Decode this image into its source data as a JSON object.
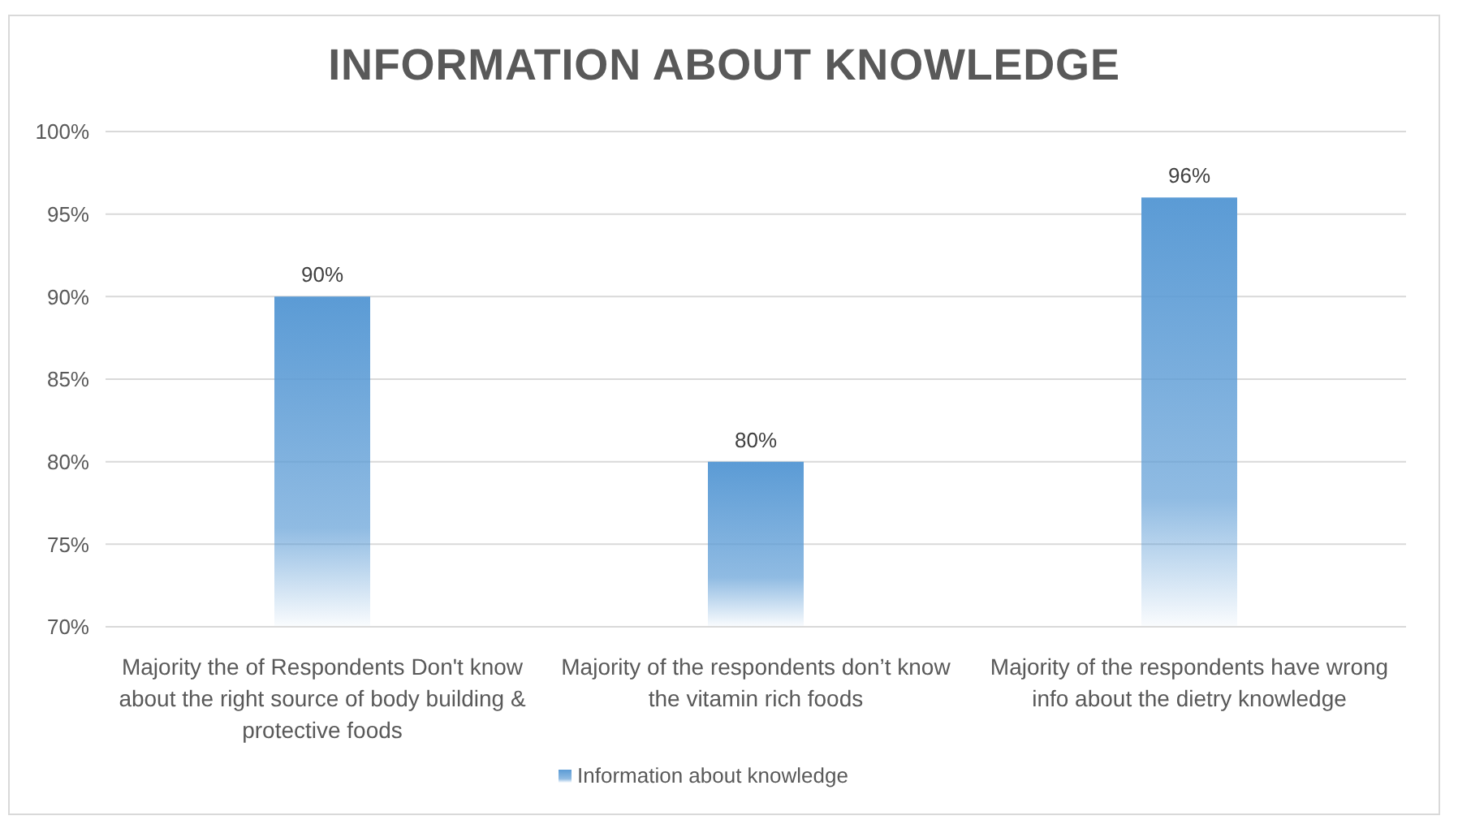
{
  "chart_data": {
    "type": "bar",
    "title": "INFORMATION ABOUT KNOWLEDGE",
    "categories": [
      "Majority the of Respondents Don't know about the right source of body building & protective foods",
      "Majority of the respondents don’t know the vitamin rich foods",
      "Majority of the respondents have wrong info about the dietry knowledge"
    ],
    "series": [
      {
        "name": "Information about knowledge",
        "color": "#5b9bd5",
        "values": [
          90,
          80,
          96
        ],
        "value_labels": [
          "90%",
          "80%",
          "96%"
        ]
      }
    ],
    "ylim": [
      70,
      100
    ],
    "yticks": [
      {
        "value": 70,
        "label": "70%"
      },
      {
        "value": 75,
        "label": "75%"
      },
      {
        "value": 80,
        "label": "80%"
      },
      {
        "value": 85,
        "label": "85%"
      },
      {
        "value": 90,
        "label": "90%"
      },
      {
        "value": 95,
        "label": "95%"
      },
      {
        "value": 100,
        "label": "100%"
      }
    ],
    "grid": "y",
    "legend": "bottom"
  }
}
